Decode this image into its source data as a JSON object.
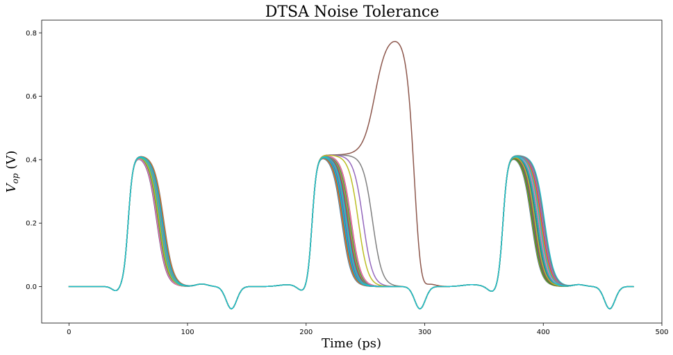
{
  "chart_data": {
    "type": "line",
    "title": "DTSA Noise Tolerance",
    "xlabel": "Time (ps)",
    "ylabel": "V",
    "ylabel_sub": "op",
    "ylabel_unit": " (V)",
    "xlim": [
      -23,
      500
    ],
    "ylim": [
      -0.115,
      0.84
    ],
    "xticks": [
      0,
      100,
      200,
      300,
      400,
      500
    ],
    "yticks": [
      0.0,
      0.2,
      0.4,
      0.6,
      0.8
    ],
    "xtick_labels": [
      "0",
      "100",
      "200",
      "300",
      "400",
      "500"
    ],
    "ytick_labels": [
      "0.0",
      "0.2",
      "0.4",
      "0.6",
      "0.8"
    ],
    "grid": false,
    "legend": "none",
    "time_range": [
      0,
      476
    ],
    "high_level": 0.415,
    "pulse_peaks": [
      57,
      213,
      373
    ],
    "dip_points": [
      {
        "x": 40,
        "y": -0.015
      },
      {
        "x": 137,
        "y": -0.07
      },
      {
        "x": 198,
        "y": -0.02
      },
      {
        "x": 296,
        "y": -0.07
      },
      {
        "x": 358,
        "y": -0.02
      },
      {
        "x": 456,
        "y": -0.07
      }
    ],
    "fall_midpoints": {
      "pulse_1": [
        74,
        80
      ],
      "pulse_2": [
        230,
        238
      ],
      "pulse_3": [
        390,
        401
      ]
    },
    "outlier_curves": [
      {
        "color": "#8c564b",
        "peak": {
          "x": 274,
          "y": 0.795
        },
        "fall_mid": 291
      },
      {
        "color": "#7f7f7f",
        "fall_mid": 256
      },
      {
        "color": "#9467bd",
        "fall_mid": 248
      },
      {
        "color": "#bcbd22",
        "fall_mid": 244
      }
    ],
    "colors": [
      "#1f77b4",
      "#ff7f0e",
      "#2ca02c",
      "#d62728",
      "#9467bd",
      "#8c564b",
      "#e377c2",
      "#7f7f7f",
      "#bcbd22",
      "#17becf"
    ]
  }
}
